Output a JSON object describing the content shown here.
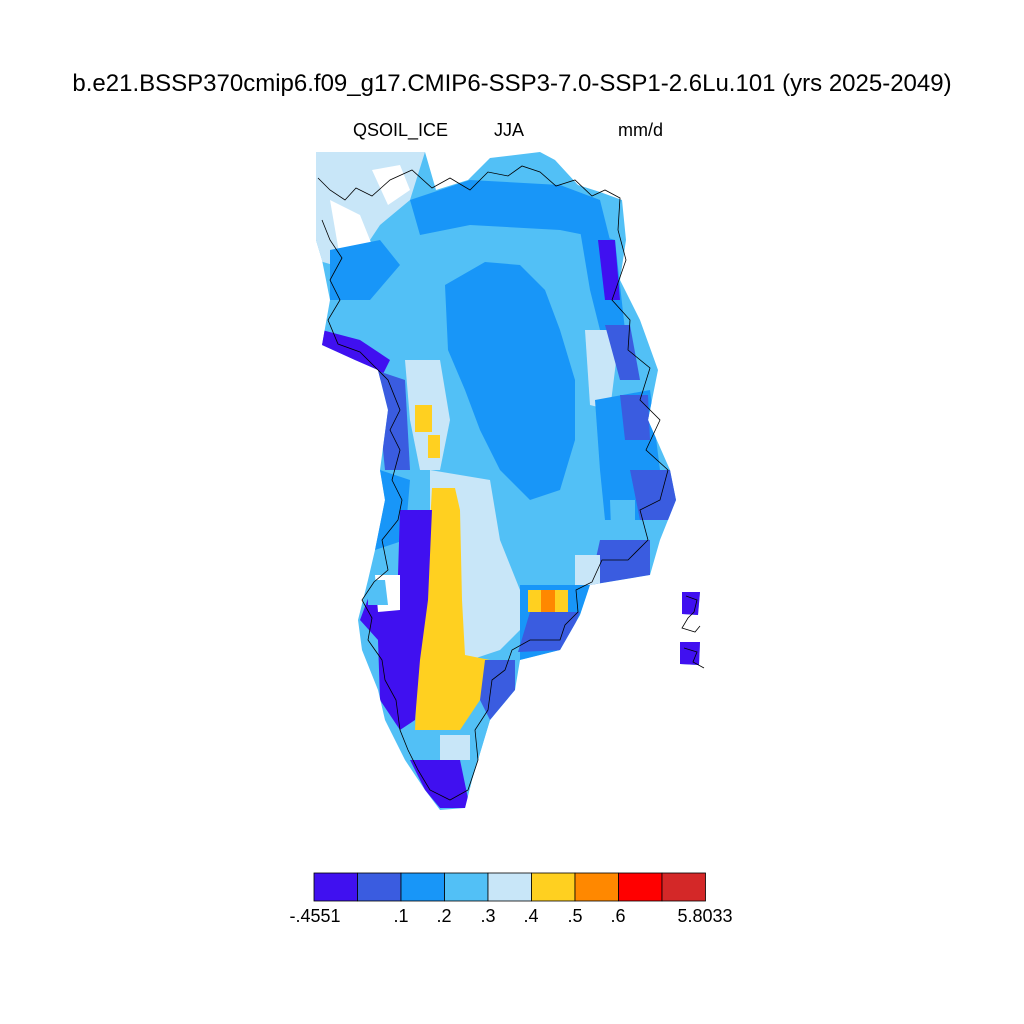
{
  "title": "b.e21.BSSP370cmip6.f09_g17.CMIP6-SSP3-7.0-SSP1-2.6Lu.101 (yrs 2025-2049)",
  "variable": "QSOIL_ICE",
  "season": "JJA",
  "units": "mm/d",
  "colorbar": {
    "colors": [
      "#4010f0",
      "#3a5ce0",
      "#1896f8",
      "#52c0f6",
      "#c8e6f8",
      "#ffd020",
      "#ff8800",
      "#ff0000",
      "#d42828"
    ],
    "labels": [
      "-.4551",
      ".1",
      ".2",
      ".3",
      ".4",
      ".5",
      ".6",
      "5.8033"
    ]
  }
}
